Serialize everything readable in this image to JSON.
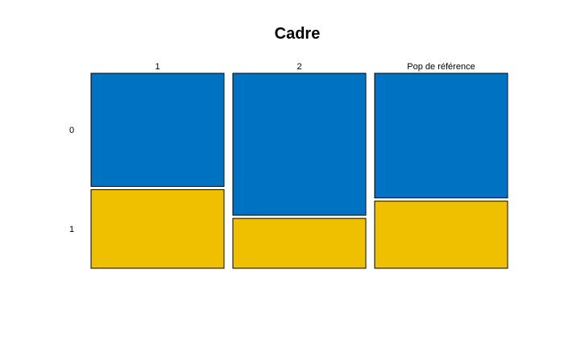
{
  "chart_data": {
    "type": "mosaic",
    "title": "Cadre",
    "categories": [
      "1",
      "2",
      "Pop de référence"
    ],
    "row_levels": [
      "0",
      "1"
    ],
    "series": [
      {
        "name": "0",
        "color": "#0072C2",
        "values": [
          0.59,
          0.74,
          0.65
        ]
      },
      {
        "name": "1",
        "color": "#EFC000",
        "values": [
          0.41,
          0.26,
          0.35
        ]
      }
    ],
    "grid": false,
    "legend": "none"
  }
}
